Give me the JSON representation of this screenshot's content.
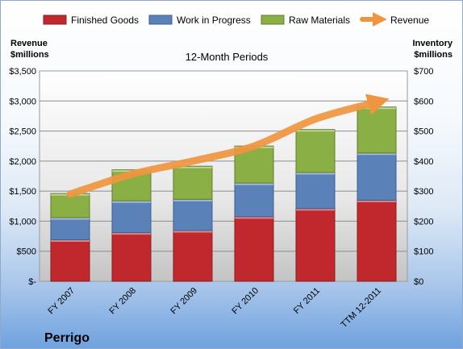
{
  "chart_data": {
    "type": "bar",
    "subtitle": "12-Month Periods",
    "company": "Perrigo",
    "categories": [
      "FY 2007",
      "FY 2008",
      "FY 2009",
      "FY 2010",
      "FY 2011",
      "TTM 12-2011"
    ],
    "series": [
      {
        "name": "Finished Goods",
        "axis": "right",
        "color": "#c0282d",
        "values": [
          138,
          162,
          169,
          215,
          242,
          270
        ]
      },
      {
        "name": "Work in Progress",
        "axis": "right",
        "color": "#5b82b8",
        "values": [
          74,
          106,
          104,
          112,
          120,
          157
        ]
      },
      {
        "name": "Raw Materials",
        "axis": "right",
        "color": "#8aaf45",
        "values": [
          80,
          103,
          110,
          123,
          143,
          153
        ]
      }
    ],
    "line_series": {
      "name": "Revenue",
      "axis": "left",
      "color": "#f0953f",
      "values": [
        1450,
        1780,
        2000,
        2250,
        2700,
        2980
      ]
    },
    "stacked": true,
    "left_axis": {
      "label_line1": "Revenue",
      "label_line2": "$millions",
      "ylim": [
        0,
        3500
      ],
      "ticks": [
        "$-",
        "$500",
        "$1,000",
        "$1,500",
        "$2,000",
        "$2,500",
        "$3,000",
        "$3,500"
      ]
    },
    "right_axis": {
      "label_line1": "Inventory",
      "label_line2": "$millions",
      "ylim": [
        0,
        700
      ],
      "ticks": [
        "$0",
        "$100",
        "$200",
        "$300",
        "$400",
        "$500",
        "$600",
        "$700"
      ]
    },
    "grid": true,
    "legend": "top"
  }
}
